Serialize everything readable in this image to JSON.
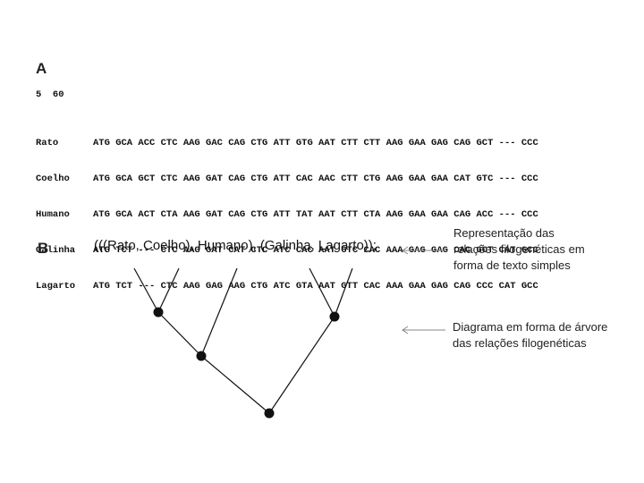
{
  "panels": {
    "a": "A",
    "b": "B"
  },
  "alignment_header": "5  60",
  "sequences": [
    {
      "name": "Rato",
      "codons": "ATG GCA ACC CTC AAG GAC CAG CTG ATT GTG AAT CTT CTT AAG GAA GAG CAG GCT --- CCC"
    },
    {
      "name": "Coelho",
      "codons": "ATG GCA GCT CTC AAG GAT CAG CTG ATT CAC AAC CTT CTG AAG GAA GAA CAT GTC --- CCC"
    },
    {
      "name": "Humano",
      "codons": "ATG GCA ACT CTA AAG GAT CAG CTG ATT TAT AAT CTT CTA AAG GAA GAA CAG ACC --- CCC"
    },
    {
      "name": "Galinha",
      "codons": "ATG TCT --- CTC AAG GAT CAT CTC ATC CAC AAT GTC CAC AAA GAG GAG CAC GCT CAT GCC"
    },
    {
      "name": "Lagarto",
      "codons": "ATG TCT --- CTC AAG GAG AAG CTG ATC GTA AAT GTT CAC AAA GAA GAG CAG CCC CAT GCC"
    }
  ],
  "newick": "(((Rato, Coelho), Humano), (Galinha, Lagarto));",
  "annotations": {
    "text_format": [
      "Representação das",
      "relações filogenéticas em",
      "forma de texto simples"
    ],
    "tree_diagram": [
      "Diagrama em forma de árvore",
      "das relações filogenéticas"
    ]
  },
  "colors": {
    "line": "#111111",
    "arrow": "#888888",
    "node": "#111111"
  }
}
